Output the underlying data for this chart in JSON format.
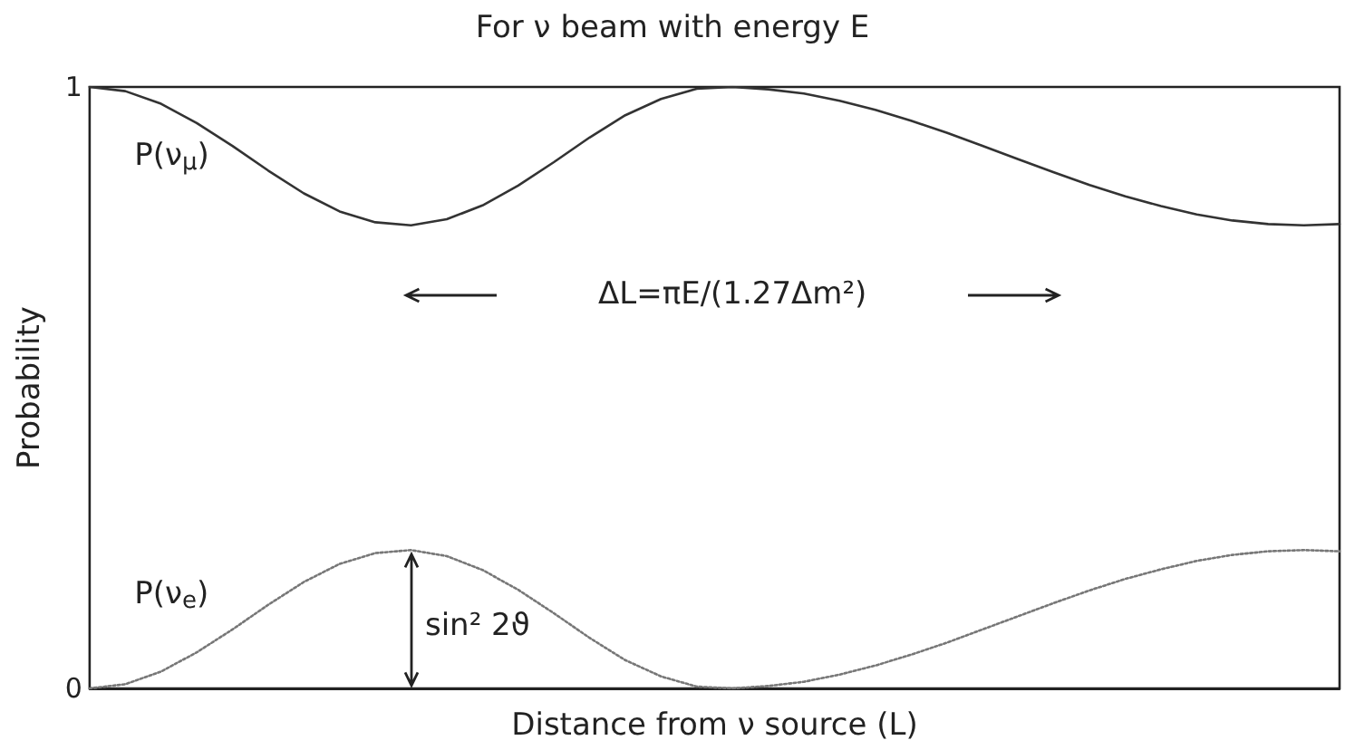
{
  "chart_data": {
    "type": "line",
    "title": "For ν beam with energy E",
    "xlabel": "Distance from ν source (L)",
    "ylabel": "Probability",
    "categories": [
      null,
      null,
      null,
      null,
      null,
      null,
      null,
      null,
      null,
      null,
      null,
      null,
      null,
      null,
      null,
      null,
      null,
      null,
      null,
      null,
      null,
      null,
      null,
      null,
      null,
      null,
      null,
      null,
      null,
      null,
      null,
      null,
      null,
      null,
      null,
      null
    ],
    "series": [
      {
        "name": "P(ν$_{μ}$)",
        "color": "#333333",
        "line_style": "solid",
        "values": [
          1,
          0.993,
          0.972,
          0.94,
          0.902,
          0.861,
          0.823,
          0.793,
          0.775,
          0.77,
          0.78,
          0.803,
          0.836,
          0.875,
          0.916,
          0.953,
          0.98,
          0.997,
          1,
          0.996,
          0.989,
          0.977,
          0.962,
          0.944,
          0.924,
          0.902,
          0.88,
          0.858,
          0.837,
          0.818,
          0.802,
          0.788,
          0.778,
          0.772,
          0.77,
          0.772
        ]
      },
      {
        "name": "P(ν$_{e}$)",
        "color": "#777777",
        "line_style": "dotted",
        "values": [
          0,
          0.007,
          0.028,
          0.06,
          0.098,
          0.139,
          0.177,
          0.207,
          0.225,
          0.23,
          0.22,
          0.197,
          0.164,
          0.125,
          0.084,
          0.047,
          0.02,
          0.003,
          0,
          0.004,
          0.011,
          0.023,
          0.038,
          0.056,
          0.076,
          0.098,
          0.12,
          0.142,
          0.163,
          0.182,
          0.198,
          0.212,
          0.222,
          0.228,
          0.23,
          0.228
        ]
      }
    ],
    "ylim": [
      0,
      1
    ],
    "yticks": [
      0,
      1
    ],
    "tick_labels": "y",
    "grid": false,
    "legend": false,
    "marker": "none",
    "annotations": [
      "ΔL=πE/(1.27Δm²)",
      "sin² 2ϑ"
    ]
  }
}
